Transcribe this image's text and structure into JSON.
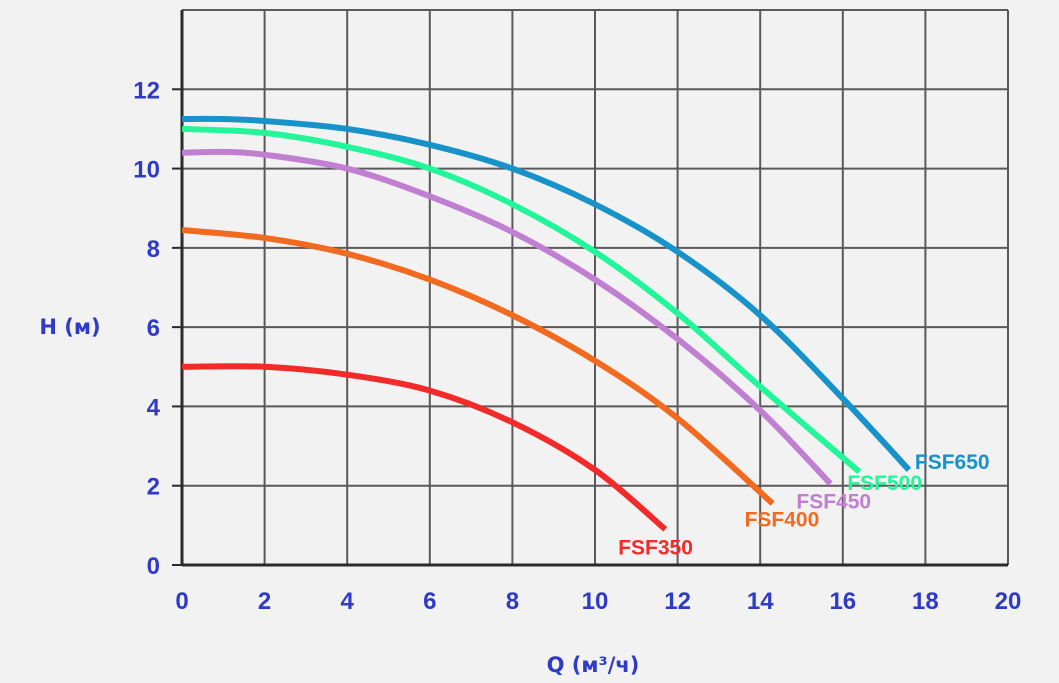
{
  "chart_data": {
    "type": "line",
    "xlabel": "Q (м³/ч)",
    "ylabel": "H (м)",
    "xlim": [
      0,
      20
    ],
    "ylim": [
      0,
      14
    ],
    "xticks": [
      0,
      2,
      4,
      6,
      8,
      10,
      12,
      14,
      16,
      18,
      20
    ],
    "yticks": [
      0,
      2,
      4,
      6,
      8,
      10,
      12
    ],
    "grid": true,
    "series": [
      {
        "name": "FSF350",
        "color": "#f22a2a",
        "x": [
          0,
          2,
          4,
          6,
          8,
          10,
          11.7
        ],
        "y": [
          5.0,
          5.0,
          4.8,
          4.4,
          3.6,
          2.4,
          0.9
        ]
      },
      {
        "name": "FSF400",
        "color": "#f26a1f",
        "x": [
          0,
          2,
          4,
          6,
          8,
          10,
          12,
          14.3
        ],
        "y": [
          8.45,
          8.25,
          7.85,
          7.2,
          6.3,
          5.15,
          3.7,
          1.55
        ]
      },
      {
        "name": "FSF450",
        "color": "#c07fd1",
        "x": [
          0,
          1,
          2,
          4,
          6,
          8,
          10,
          12,
          14,
          15.7
        ],
        "y": [
          10.4,
          10.42,
          10.35,
          10.0,
          9.3,
          8.4,
          7.2,
          5.7,
          3.9,
          2.05
        ]
      },
      {
        "name": "FSF500",
        "color": "#22f59a",
        "x": [
          0,
          2,
          4,
          6,
          8,
          10,
          12,
          14,
          16.4
        ],
        "y": [
          11.0,
          10.9,
          10.55,
          10.0,
          9.1,
          7.9,
          6.35,
          4.5,
          2.35
        ]
      },
      {
        "name": "FSF650",
        "color": "#1893c9",
        "x": [
          0,
          1,
          2,
          4,
          6,
          8,
          10,
          12,
          14,
          16,
          17.6
        ],
        "y": [
          11.25,
          11.25,
          11.2,
          11.0,
          10.6,
          10.0,
          9.1,
          7.9,
          6.3,
          4.2,
          2.4
        ]
      }
    ]
  }
}
